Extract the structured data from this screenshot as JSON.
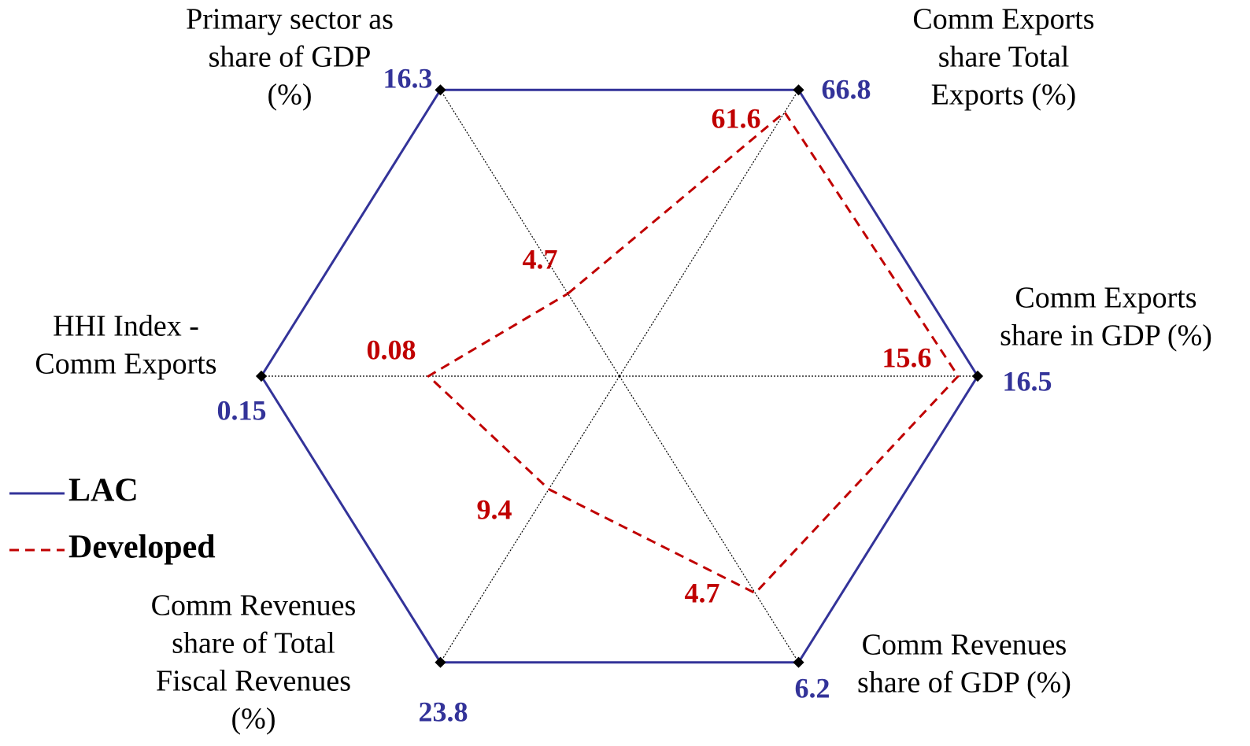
{
  "chart_data": {
    "type": "radar",
    "categories": [
      [
        "Primary sector  as",
        "share of GDP",
        "(%)"
      ],
      [
        "Comm Exports",
        "share Total",
        "Exports  (%)"
      ],
      [
        "Comm  Exports",
        "share in GDP (%)"
      ],
      [
        "Comm  Revenues",
        "share of GDP (%)"
      ],
      [
        "Comm  Revenues",
        "share of Total",
        "Fiscal Revenues",
        "(%)"
      ],
      [
        "HHI Index -",
        "Comm Exports"
      ]
    ],
    "series": [
      {
        "name": "LAC",
        "color": "#333399",
        "values": [
          16.3,
          66.8,
          16.5,
          6.2,
          23.8,
          0.15
        ]
      },
      {
        "name": "Developed",
        "color": "#c00000",
        "values": [
          4.7,
          61.6,
          15.6,
          4.7,
          9.4,
          0.08
        ]
      }
    ],
    "legend": "left"
  }
}
